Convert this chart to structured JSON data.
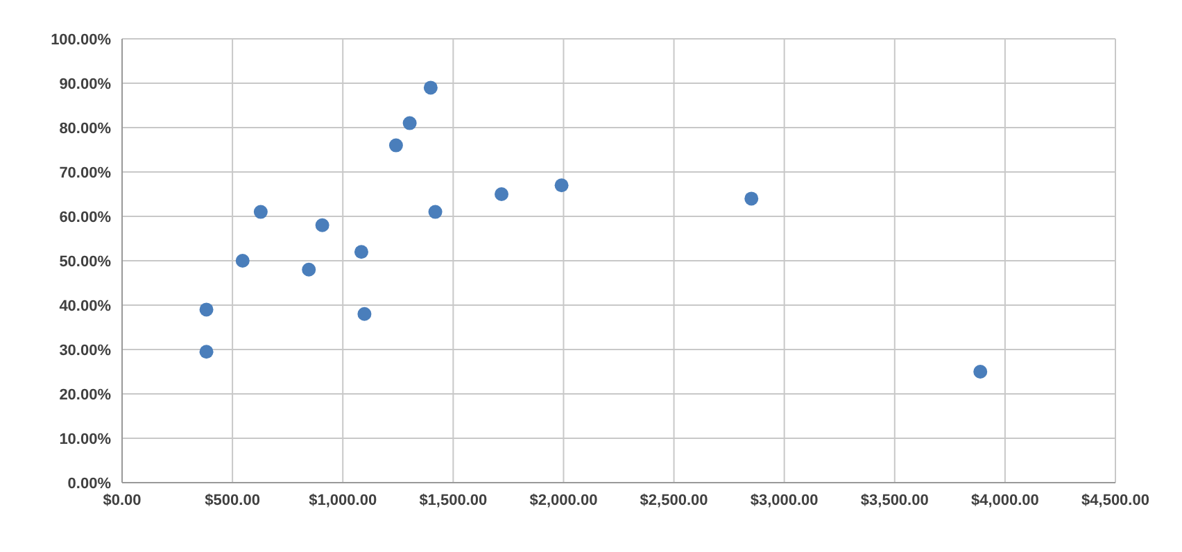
{
  "chart_data": {
    "type": "scatter",
    "x": [
      382,
      382,
      546,
      628,
      846,
      907,
      1084,
      1098,
      1241,
      1303,
      1398,
      1419,
      1719,
      1991,
      2851,
      3888
    ],
    "values": [
      29.5,
      39,
      50,
      61,
      48,
      58,
      52,
      38,
      76,
      81,
      89,
      61,
      65,
      67,
      64,
      25
    ],
    "color": "#4a7ebb",
    "marker": "circle",
    "grid": true,
    "xlim": [
      0,
      4500
    ],
    "xticks": [
      {
        "value": 0,
        "label": "$0.00"
      },
      {
        "value": 500,
        "label": "$500.00"
      },
      {
        "value": 1000,
        "label": "$1,000.00"
      },
      {
        "value": 1500,
        "label": "$1,500.00"
      },
      {
        "value": 2000,
        "label": "$2,000.00"
      },
      {
        "value": 2500,
        "label": "$2,500.00"
      },
      {
        "value": 3000,
        "label": "$3,000.00"
      },
      {
        "value": 3500,
        "label": "$3,500.00"
      },
      {
        "value": 4000,
        "label": "$4,000.00"
      },
      {
        "value": 4500,
        "label": "$4,500.00"
      }
    ],
    "ylim": [
      0,
      100
    ],
    "yticks": [
      {
        "value": 0,
        "label": "0.00%"
      },
      {
        "value": 10,
        "label": "10.00%"
      },
      {
        "value": 20,
        "label": "20.00%"
      },
      {
        "value": 30,
        "label": "30.00%"
      },
      {
        "value": 40,
        "label": "40.00%"
      },
      {
        "value": 50,
        "label": "50.00%"
      },
      {
        "value": 60,
        "label": "60.00%"
      },
      {
        "value": 70,
        "label": "70.00%"
      },
      {
        "value": 80,
        "label": "80.00%"
      },
      {
        "value": 90,
        "label": "90.00%"
      },
      {
        "value": 100,
        "label": "100.00%"
      }
    ]
  }
}
